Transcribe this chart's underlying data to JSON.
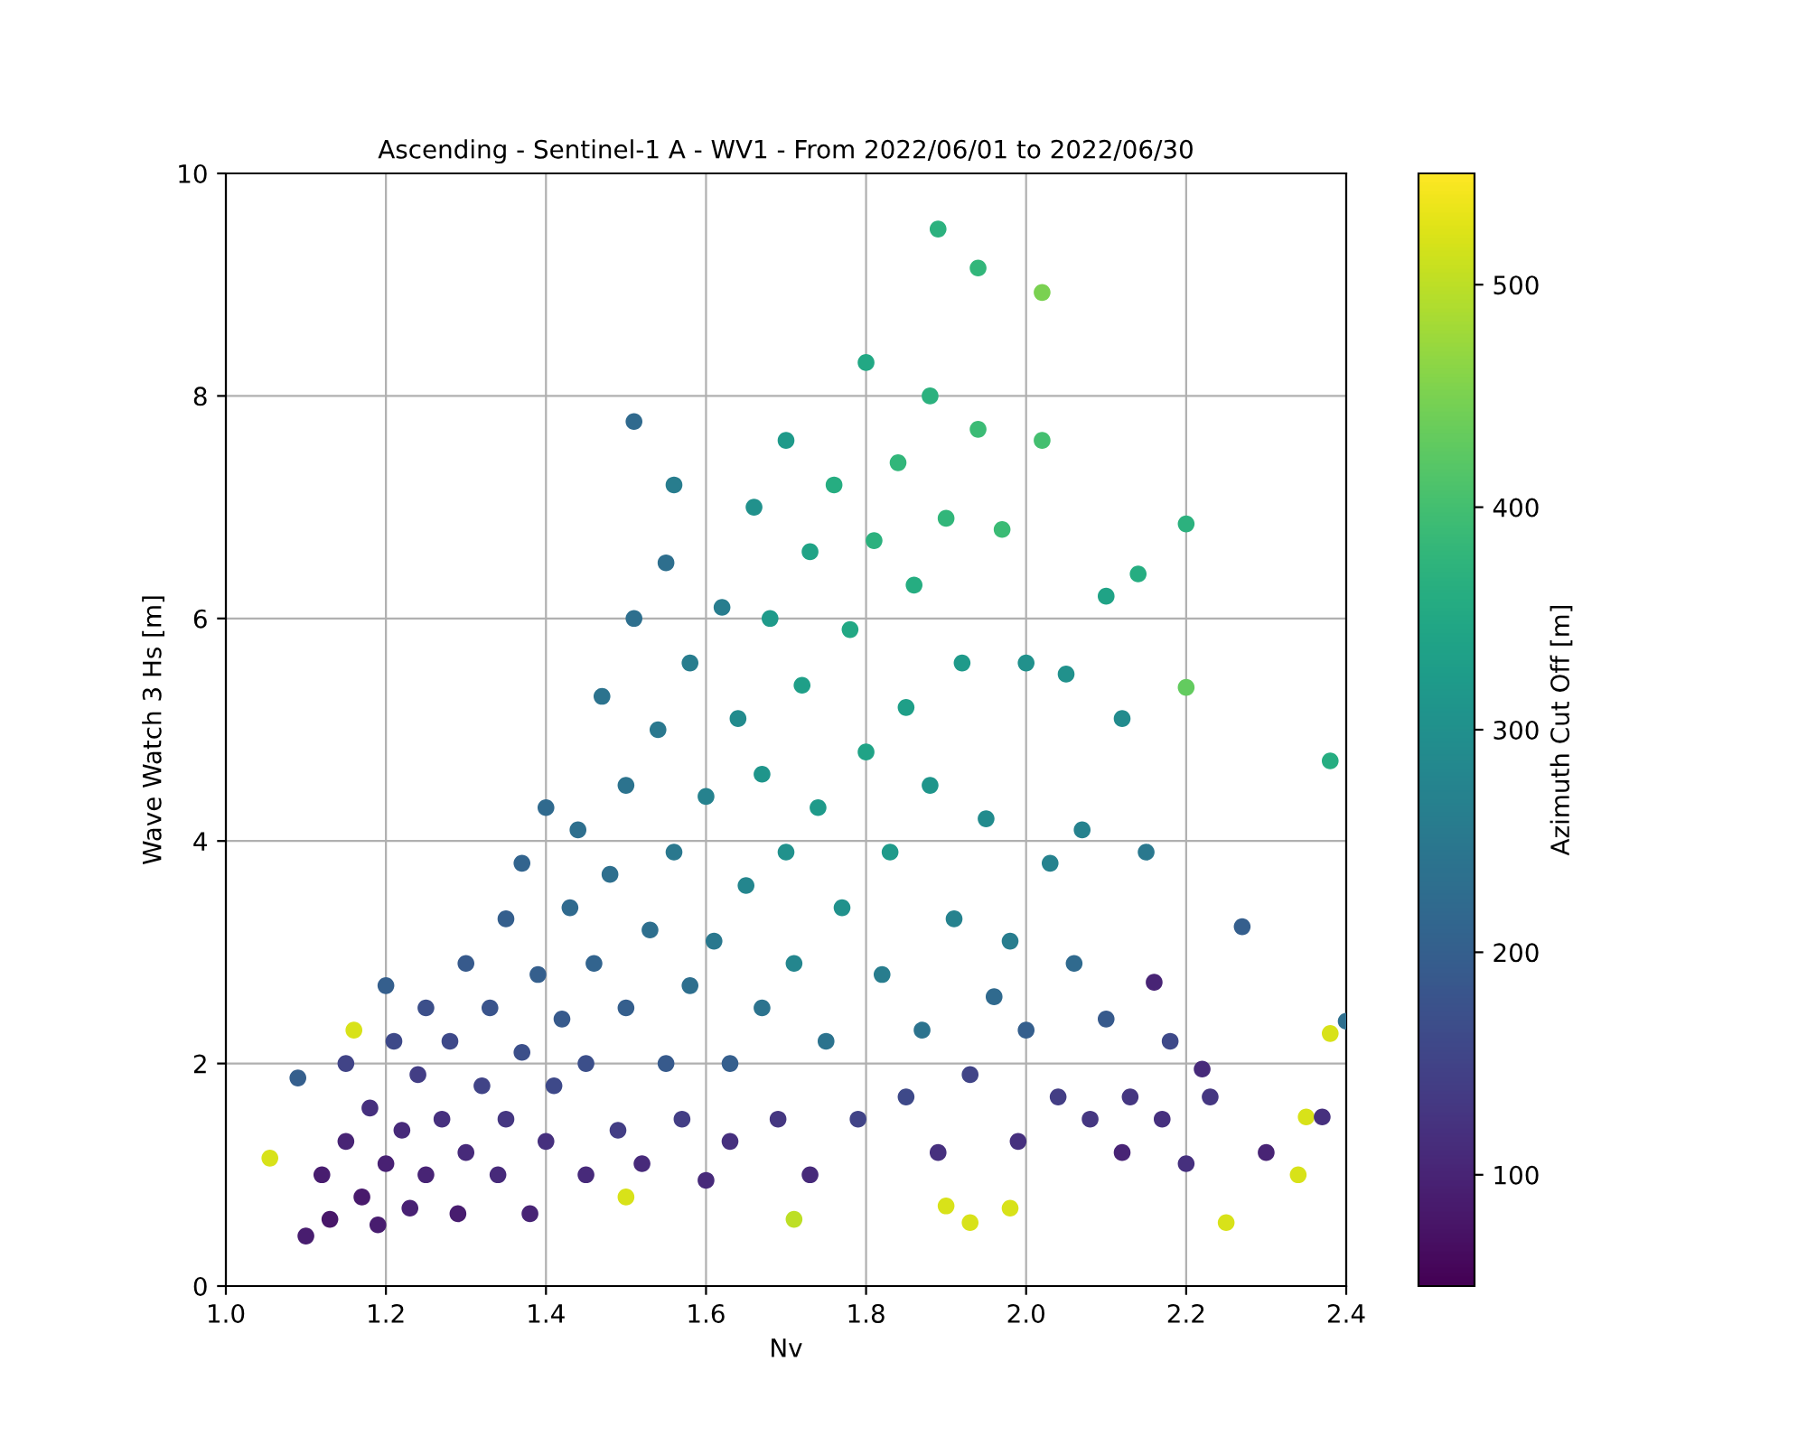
{
  "chart_data": {
    "type": "scatter",
    "title": "Ascending - Sentinel-1 A - WV1 - From 2022/06/01 to 2022/06/30",
    "xlabel": "Nv",
    "ylabel": "Wave Watch 3 Hs [m]",
    "clabel": "Azimuth Cut Off [m]",
    "xlim": [
      1.0,
      2.4
    ],
    "xticks": [
      {
        "value": 1.0,
        "label": "1.0"
      },
      1.2,
      1.4,
      1.6,
      1.8,
      {
        "value": 2.0,
        "label": "2.0"
      },
      2.2,
      2.4
    ],
    "ylim": [
      0,
      10
    ],
    "yticks": [
      0,
      2,
      4,
      6,
      8,
      10
    ],
    "clim": [
      50,
      550
    ],
    "cticks": [
      100,
      200,
      300,
      400,
      500
    ],
    "grid": true,
    "marker": "circle",
    "series": [
      {
        "x": [
          1.055,
          1.09,
          1.1,
          1.2,
          1.51,
          1.56,
          1.89,
          2.02,
          1.94,
          2.2,
          2.2,
          2.38,
          2.27,
          2.4,
          2.38,
          2.25,
          2.35,
          2.34,
          1.93,
          1.98,
          1.9,
          1.5,
          1.71,
          1.16,
          2.16,
          2.22,
          2.12,
          2.3,
          2.37,
          1.12,
          1.13,
          1.15,
          1.15,
          1.17,
          1.18,
          1.19,
          1.2,
          1.21,
          1.22,
          1.23,
          1.24,
          1.25,
          1.25,
          1.27,
          1.28,
          1.29,
          1.3,
          1.3,
          1.32,
          1.33,
          1.34,
          1.35,
          1.35,
          1.37,
          1.37,
          1.38,
          1.39,
          1.4,
          1.4,
          1.41,
          1.42,
          1.43,
          1.44,
          1.45,
          1.45,
          1.46,
          1.47,
          1.48,
          1.49,
          1.5,
          1.5,
          1.51,
          1.52,
          1.53,
          1.54,
          1.55,
          1.55,
          1.56,
          1.57,
          1.58,
          1.58,
          1.6,
          1.6,
          1.61,
          1.62,
          1.63,
          1.63,
          1.64,
          1.65,
          1.66,
          1.67,
          1.67,
          1.68,
          1.69,
          1.7,
          1.7,
          1.71,
          1.72,
          1.73,
          1.73,
          1.74,
          1.75,
          1.76,
          1.77,
          1.78,
          1.79,
          1.8,
          1.8,
          1.81,
          1.82,
          1.83,
          1.84,
          1.85,
          1.85,
          1.86,
          1.87,
          1.88,
          1.88,
          1.89,
          1.9,
          1.91,
          1.92,
          1.93,
          1.94,
          1.95,
          1.96,
          1.97,
          1.98,
          1.99,
          2.0,
          2.0,
          2.02,
          2.03,
          2.04,
          2.05,
          2.06,
          2.07,
          2.08,
          2.1,
          2.1,
          2.12,
          2.13,
          2.14,
          2.15,
          2.17,
          2.18,
          2.2,
          2.23
        ],
        "values": [
          1.15,
          1.87,
          0.45,
          2.7,
          7.77,
          7.2,
          9.5,
          8.93,
          9.15,
          6.85,
          5.38,
          4.72,
          3.23,
          2.38,
          2.27,
          0.57,
          1.52,
          1.0,
          0.57,
          0.7,
          0.72,
          0.8,
          0.6,
          2.3,
          2.73,
          1.95,
          1.2,
          1.2,
          1.52,
          1.0,
          0.6,
          1.3,
          2.0,
          0.8,
          1.6,
          0.55,
          1.1,
          2.2,
          1.4,
          0.7,
          1.9,
          2.5,
          1.0,
          1.5,
          2.2,
          0.65,
          2.9,
          1.2,
          1.8,
          2.5,
          1.0,
          3.3,
          1.5,
          2.1,
          3.8,
          0.65,
          2.8,
          1.3,
          4.3,
          1.8,
          2.4,
          3.4,
          4.1,
          1.0,
          2.0,
          2.9,
          5.3,
          3.7,
          1.4,
          2.5,
          4.5,
          6.0,
          1.1,
          3.2,
          5.0,
          2.0,
          6.5,
          3.9,
          1.5,
          2.7,
          5.6,
          4.4,
          0.95,
          3.1,
          6.1,
          2.0,
          1.3,
          5.1,
          3.6,
          7.0,
          2.5,
          4.6,
          6.0,
          1.5,
          3.9,
          7.6,
          2.9,
          5.4,
          6.6,
          1.0,
          4.3,
          2.2,
          7.2,
          3.4,
          5.9,
          1.5,
          4.8,
          8.3,
          6.7,
          2.8,
          3.9,
          7.4,
          5.2,
          1.7,
          6.3,
          2.3,
          4.5,
          8.0,
          1.2,
          6.9,
          3.3,
          5.6,
          1.9,
          7.7,
          4.2,
          2.6,
          6.8,
          3.1,
          1.3,
          5.6,
          2.3,
          7.6,
          3.8,
          1.7,
          5.5,
          2.9,
          4.1,
          1.5,
          6.2,
          2.4,
          5.1,
          1.7,
          6.4,
          3.9,
          1.5,
          2.2,
          1.1,
          1.7
        ],
        "cvalues": [
          520,
          200,
          90,
          200,
          220,
          260,
          370,
          450,
          380,
          370,
          430,
          360,
          200,
          230,
          520,
          520,
          520,
          520,
          520,
          520,
          520,
          520,
          500,
          520,
          100,
          110,
          100,
          100,
          120,
          90,
          80,
          100,
          150,
          85,
          120,
          90,
          95,
          160,
          110,
          95,
          140,
          170,
          100,
          120,
          160,
          90,
          190,
          110,
          150,
          180,
          110,
          200,
          130,
          170,
          210,
          100,
          200,
          120,
          220,
          160,
          190,
          220,
          230,
          110,
          170,
          210,
          240,
          230,
          140,
          200,
          240,
          230,
          110,
          230,
          250,
          190,
          230,
          250,
          140,
          230,
          260,
          270,
          110,
          250,
          260,
          200,
          120,
          290,
          280,
          300,
          240,
          310,
          320,
          130,
          300,
          320,
          280,
          330,
          340,
          110,
          320,
          240,
          360,
          300,
          350,
          150,
          340,
          350,
          370,
          260,
          320,
          380,
          330,
          160,
          360,
          240,
          310,
          370,
          120,
          380,
          270,
          320,
          150,
          390,
          290,
          220,
          390,
          260,
          120,
          300,
          200,
          400,
          270,
          140,
          300,
          220,
          270,
          130,
          340,
          190,
          290,
          130,
          360,
          250,
          120,
          160,
          120,
          130
        ]
      }
    ]
  }
}
